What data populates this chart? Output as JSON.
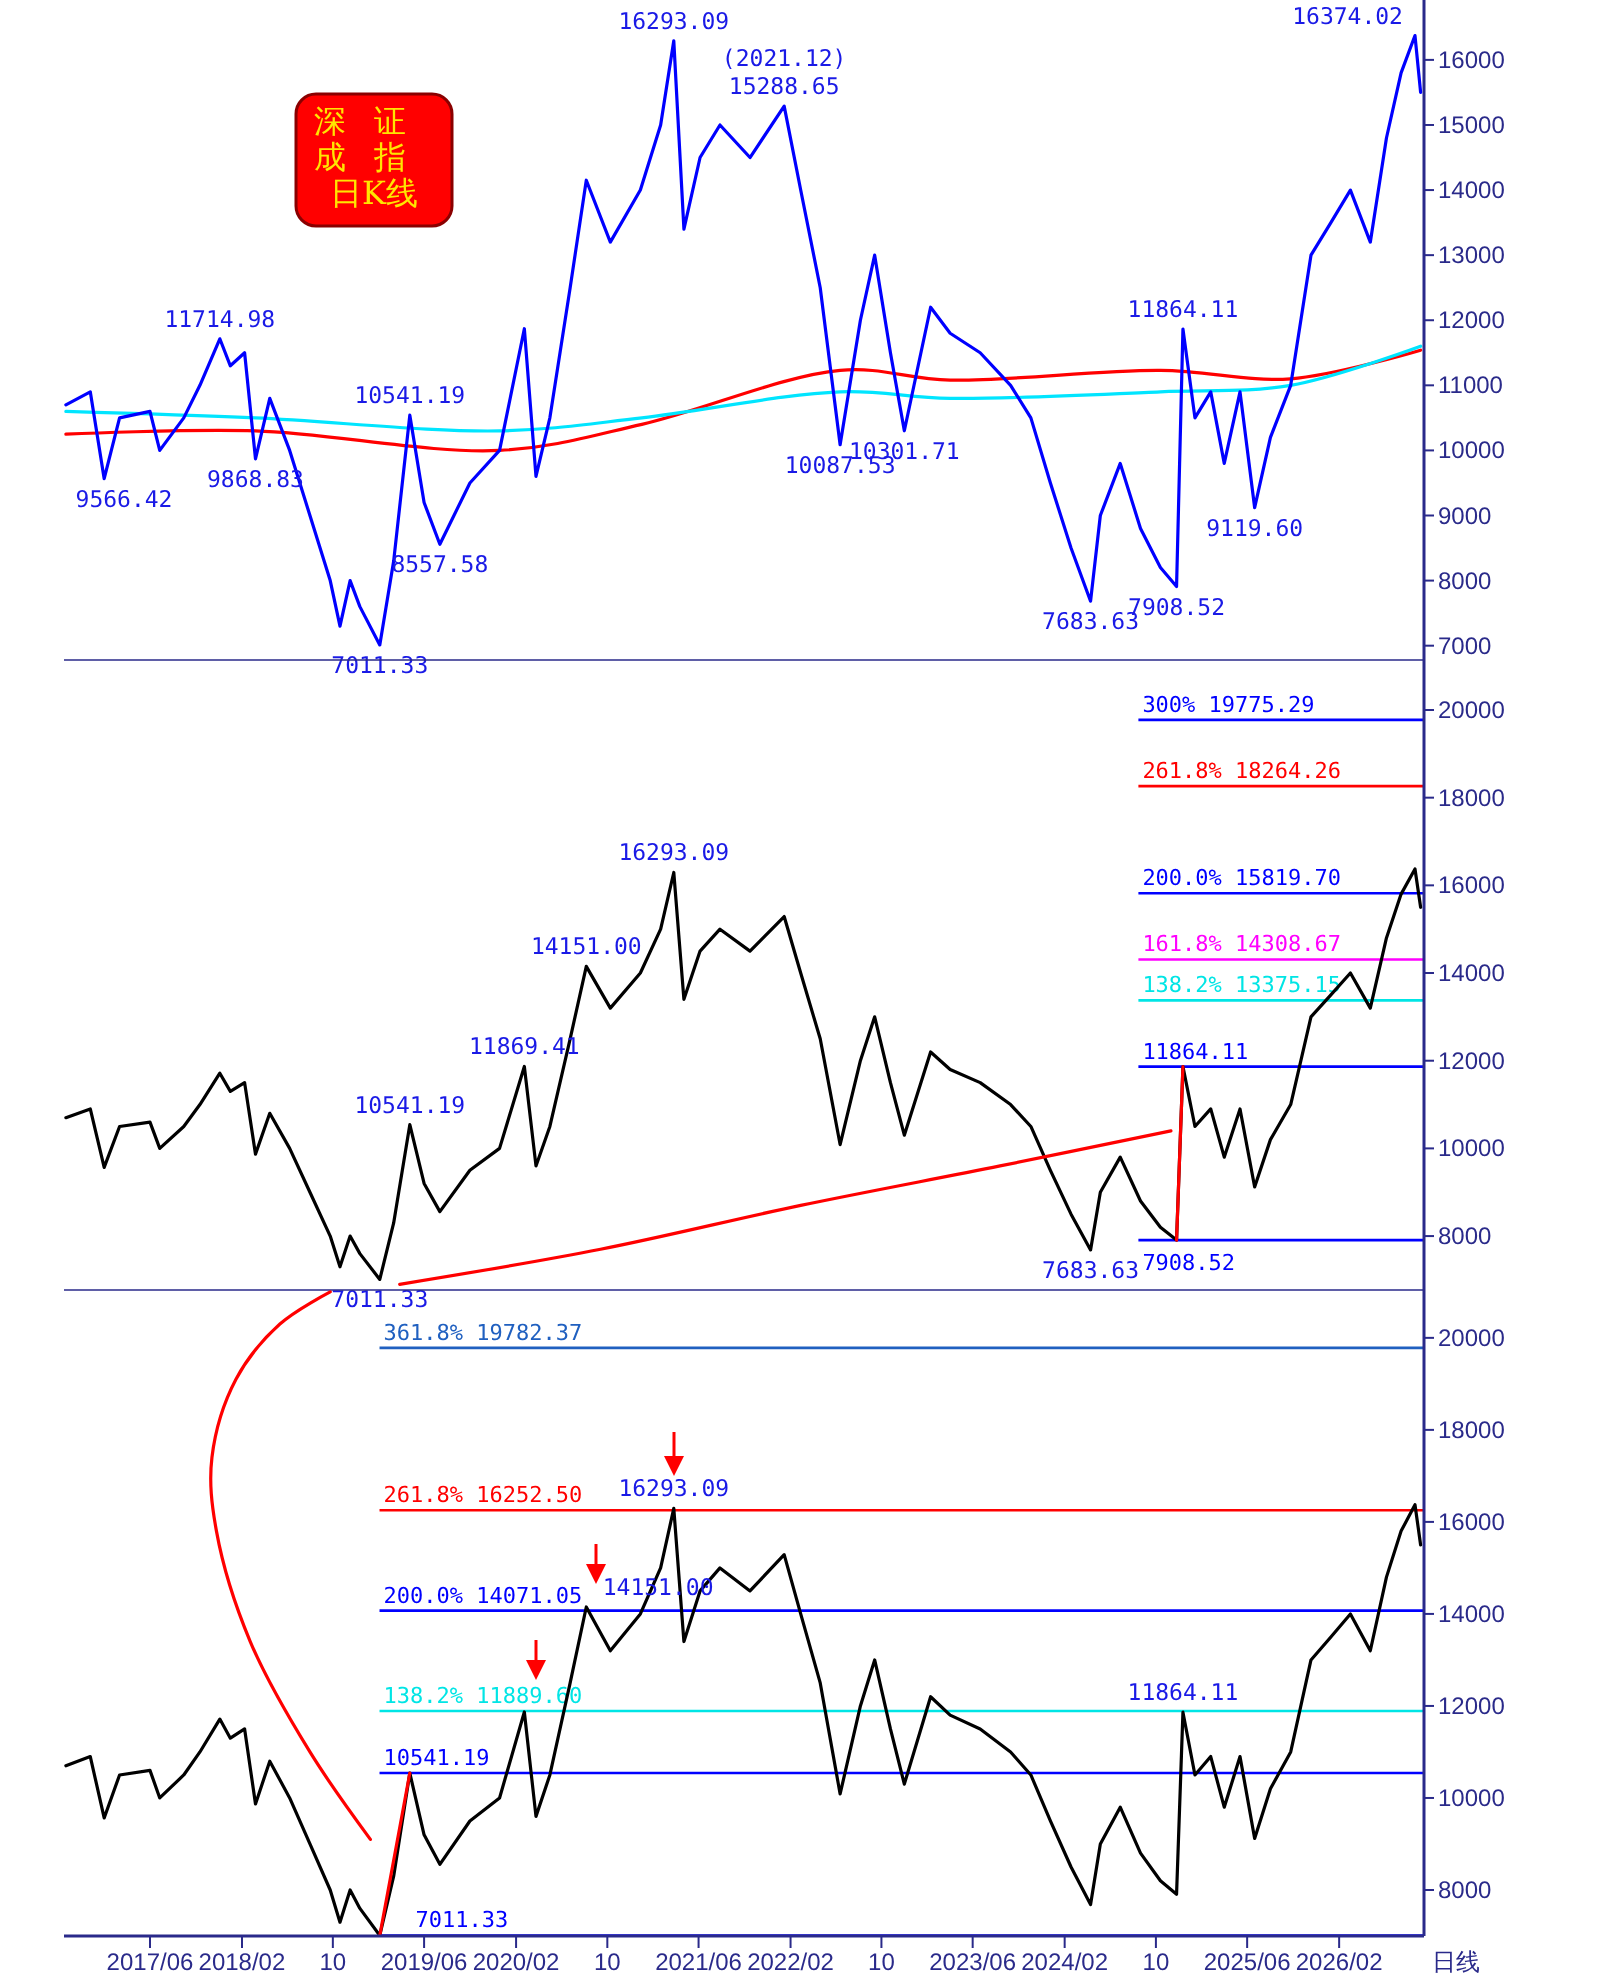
{
  "chart_data": [
    {
      "type": "line",
      "title": "深证成指日K线",
      "xlim": [
        "2016-10-15",
        "2026-09-15"
      ],
      "ylim": [
        6780,
        16920
      ],
      "yticks": [
        7000,
        8000,
        9000,
        10000,
        11000,
        12000,
        13000,
        14000,
        15000,
        16000
      ],
      "tick_labels": "y",
      "x": [
        "2016-10-20",
        "2016-12-24",
        "2017-01-30",
        "2017-03-12",
        "2017-06-01",
        "2017-06-27",
        "2017-08-30",
        "2017-10-12",
        "2017-12-04",
        "2018-01-01",
        "2018-02-08",
        "2018-03-09",
        "2018-04-16",
        "2018-06-08",
        "2018-08-01",
        "2018-09-24",
        "2018-10-20",
        "2018-11-16",
        "2018-12-12",
        "2019-02-03",
        "2019-03-12",
        "2019-04-24",
        "2019-06-01",
        "2019-07-13",
        "2019-10-01",
        "2019-12-19",
        "2020-02-23",
        "2020-03-25",
        "2020-05-01",
        "2020-06-24",
        "2020-08-06",
        "2020-10-09",
        "2020-12-28",
        "2021-02-20",
        "2021-03-27",
        "2021-04-23",
        "2021-06-05",
        "2021-07-28",
        "2021-10-16",
        "2022-01-15",
        "2022-02-28",
        "2022-04-21",
        "2022-06-13",
        "2022-08-06",
        "2022-09-13",
        "2022-10-25",
        "2022-12-01",
        "2023-02-09",
        "2023-04-02",
        "2023-06-21",
        "2023-09-10",
        "2023-11-03",
        "2023-12-25",
        "2024-02-18",
        "2024-04-10",
        "2024-05-06",
        "2024-06-28",
        "2024-08-21",
        "2024-10-13",
        "2024-11-25",
        "2024-12-12",
        "2025-01-13",
        "2025-02-24",
        "2025-04-01",
        "2025-05-13",
        "2025-06-21",
        "2025-08-02",
        "2025-09-25",
        "2025-11-18",
        "2026-01-10",
        "2026-03-03",
        "2026-04-25",
        "2026-06-07",
        "2026-07-16",
        "2026-08-22",
        "2026-09-06"
      ],
      "series": [
        {
          "color": "#ff0000",
          "x": [
            "2016-10-20",
            "2018-03-09",
            "2019-12-19",
            "2021-01-01",
            "2022-06-13",
            "2023-04-02",
            "2024-10-13",
            "2025-09-25",
            "2026-09-06"
          ],
          "values": [
            10250,
            10300,
            10000,
            10400,
            11230,
            11080,
            11230,
            11100,
            11540
          ]
        },
        {
          "color": "#00e5ff",
          "x": [
            "2016-10-20",
            "2018-03-09",
            "2019-12-19",
            "2021-01-01",
            "2022-06-13",
            "2023-04-02",
            "2024-10-13",
            "2025-09-25",
            "2026-09-06"
          ],
          "values": [
            10600,
            10500,
            10300,
            10500,
            10900,
            10800,
            10900,
            11000,
            11600
          ]
        },
        {
          "color": "#0000ff",
          "values": [
            10700,
            10900,
            9566.42,
            10500,
            10600,
            10000,
            10500,
            11000,
            11714.98,
            11300,
            11500,
            9868.83,
            10800,
            10000,
            9000,
            8000,
            7300,
            8000,
            7600,
            7011.33,
            8300,
            10541.19,
            9200,
            8557.58,
            9500,
            10000,
            11869.41,
            9600,
            10500,
            12500,
            14151,
            13200,
            14000,
            15000,
            16293.09,
            13400,
            14500,
            15000,
            14500,
            15288.65,
            14000,
            12500,
            10087.53,
            12000,
            13000,
            11500,
            10301.71,
            12200,
            11800,
            11500,
            11000,
            10500,
            9500,
            8500,
            7683.63,
            9000,
            9800,
            8800,
            8200,
            7908.52,
            11864.11,
            10500,
            10900,
            9800,
            10900,
            9119.6,
            10200,
            11000,
            13000,
            13500,
            14000,
            13200,
            14800,
            15800,
            16374.02,
            15500
          ]
        }
      ],
      "annotations": [
        {
          "text": "9566.42",
          "x": "2017-01-30",
          "y": 9566.42
        },
        {
          "text": "11714.98",
          "x": "2017-12-04",
          "y": 11714.98
        },
        {
          "text": "9868.83",
          "x": "2018-03-09",
          "y": 9868.83
        },
        {
          "text": "7011.33",
          "x": "2019-02-03",
          "y": 7011.33
        },
        {
          "text": "10541.19",
          "x": "2019-04-24",
          "y": 10541.19
        },
        {
          "text": "8557.58",
          "x": "2019-07-13",
          "y": 8557.58
        },
        {
          "text": "16293.09",
          "x": "2021-03-27",
          "y": 16293.09
        },
        {
          "text": "15288.65",
          "x": "2022-01-15",
          "y": 15288.65
        },
        {
          "text": "(2021.12)",
          "x": "2022-01-15",
          "y": 15288.65
        },
        {
          "text": "10087.53",
          "x": "2022-06-13",
          "y": 10087.53
        },
        {
          "text": "10301.71",
          "x": "2022-12-01",
          "y": 10301.71
        },
        {
          "text": "7683.63",
          "x": "2024-04-10",
          "y": 7683.63
        },
        {
          "text": "7908.52",
          "x": "2024-11-25",
          "y": 7908.52
        },
        {
          "text": "11864.11",
          "x": "2024-12-12",
          "y": 11864.11
        },
        {
          "text": "9119.60",
          "x": "2025-06-21",
          "y": 9119.6
        },
        {
          "text": "16374.02",
          "x": "2026-08-22",
          "y": 16374.02
        }
      ]
    },
    {
      "type": "line",
      "xlim": [
        "2016-10-15",
        "2026-09-15"
      ],
      "ylim": [
        6770,
        21140
      ],
      "yticks": [
        8000,
        10000,
        12000,
        14000,
        16000,
        18000,
        20000
      ],
      "tick_labels": "y",
      "x": [
        "2016-10-20",
        "2016-12-24",
        "2017-01-30",
        "2017-03-12",
        "2017-06-01",
        "2017-06-27",
        "2017-08-30",
        "2017-10-12",
        "2017-12-04",
        "2018-01-01",
        "2018-02-08",
        "2018-03-09",
        "2018-04-16",
        "2018-06-08",
        "2018-08-01",
        "2018-09-24",
        "2018-10-20",
        "2018-11-16",
        "2018-12-12",
        "2019-02-03",
        "2019-03-12",
        "2019-04-24",
        "2019-06-01",
        "2019-07-13",
        "2019-10-01",
        "2019-12-19",
        "2020-02-23",
        "2020-03-25",
        "2020-05-01",
        "2020-06-24",
        "2020-08-06",
        "2020-10-09",
        "2020-12-28",
        "2021-02-20",
        "2021-03-27",
        "2021-04-23",
        "2021-06-05",
        "2021-07-28",
        "2021-10-16",
        "2022-01-15",
        "2022-02-28",
        "2022-04-21",
        "2022-06-13",
        "2022-08-06",
        "2022-09-13",
        "2022-10-25",
        "2022-12-01",
        "2023-02-09",
        "2023-04-02",
        "2023-06-21",
        "2023-09-10",
        "2023-11-03",
        "2023-12-25",
        "2024-02-18",
        "2024-04-10",
        "2024-05-06",
        "2024-06-28",
        "2024-08-21",
        "2024-10-13",
        "2024-11-25",
        "2024-12-12",
        "2025-01-13",
        "2025-02-24",
        "2025-04-01",
        "2025-05-13",
        "2025-06-21",
        "2025-08-02",
        "2025-09-25",
        "2025-11-18",
        "2026-01-10",
        "2026-03-03",
        "2026-04-25",
        "2026-06-07",
        "2026-07-16",
        "2026-08-22",
        "2026-09-06"
      ],
      "series": [
        {
          "color": "#000000",
          "values": [
            10700,
            10900,
            9566.42,
            10500,
            10600,
            10000,
            10500,
            11000,
            11714.98,
            11300,
            11500,
            9868.83,
            10800,
            10000,
            9000,
            8000,
            7300,
            8000,
            7600,
            7011.33,
            8300,
            10541.19,
            9200,
            8557.58,
            9500,
            10000,
            11869.41,
            9600,
            10500,
            12500,
            14151,
            13200,
            14000,
            15000,
            16293.09,
            13400,
            14500,
            15000,
            14500,
            15288.65,
            14000,
            12500,
            10087.53,
            12000,
            13000,
            11500,
            10301.71,
            12200,
            11800,
            11500,
            11000,
            10500,
            9500,
            8500,
            7683.63,
            9000,
            9800,
            8800,
            8200,
            7908.52,
            11864.11,
            10500,
            10900,
            9800,
            10900,
            9119.6,
            10200,
            11000,
            13000,
            13500,
            14000,
            13200,
            14800,
            15800,
            16374.02,
            15500
          ]
        },
        {
          "color": "#ff0000",
          "x": [
            "2024-11-25",
            "2024-12-12"
          ],
          "values": [
            7908.52,
            11864.11
          ]
        },
        {
          "color": "#ff0000",
          "x": [
            "2024-11-10",
            "2023-08-13",
            "2022-02-28",
            "2020-09-13",
            "2019-03-28"
          ],
          "values": [
            10400,
            9600,
            8700,
            7700,
            6900
          ]
        }
      ],
      "ref_lines": [
        {
          "axis": "y",
          "value": 19775.29,
          "label": "300% 19775.29",
          "color": "#0000ff"
        },
        {
          "axis": "y",
          "value": 18264.26,
          "label": "261.8%  18264.26",
          "color": "#ff0000"
        },
        {
          "axis": "y",
          "value": 15819.7,
          "label": "200.0%  15819.70",
          "color": "#0000ff"
        },
        {
          "axis": "y",
          "value": 14308.67,
          "label": "161.8%  14308.67",
          "color": "#ff00ff"
        },
        {
          "axis": "y",
          "value": 13375.15,
          "label": "138.2%  13375.15",
          "color": "#00e5e5"
        },
        {
          "axis": "y",
          "value": 11864.11,
          "label": "11864.11",
          "color": "#0000ff"
        },
        {
          "axis": "y",
          "value": 7908.52,
          "label": "7908.52",
          "color": "#0000ff"
        }
      ],
      "annotations": [
        {
          "text": "10541.19",
          "x": "2019-04-24",
          "y": 10541.19
        },
        {
          "text": "7011.33",
          "x": "2019-02-03",
          "y": 7011.33
        },
        {
          "text": "11869.41",
          "x": "2020-02-23",
          "y": 11869.41
        },
        {
          "text": "14151.00",
          "x": "2020-08-06",
          "y": 14151
        },
        {
          "text": "16293.09",
          "x": "2021-03-27",
          "y": 16293.09
        },
        {
          "text": "7683.63",
          "x": "2024-04-10",
          "y": 7683.63
        }
      ]
    },
    {
      "type": "line",
      "xlim": [
        "2016-10-15",
        "2026-09-15"
      ],
      "ylim": [
        7000,
        21040
      ],
      "yticks": [
        8000,
        10000,
        12000,
        14000,
        16000,
        18000,
        20000
      ],
      "xticks": [
        {
          "value": "2017-06-01",
          "label": "2017/06"
        },
        {
          "value": "2018-02-01",
          "label": "2018/02"
        },
        {
          "value": "2018-10-01",
          "label": "10"
        },
        {
          "value": "2019-06-01",
          "label": "2019/06"
        },
        {
          "value": "2020-02-01",
          "label": "2020/02"
        },
        {
          "value": "2020-10-01",
          "label": "10"
        },
        {
          "value": "2021-06-01",
          "label": "2021/06"
        },
        {
          "value": "2022-02-01",
          "label": "2022/02"
        },
        {
          "value": "2022-10-01",
          "label": "10"
        },
        {
          "value": "2023-06-01",
          "label": "2023/06"
        },
        {
          "value": "2024-02-01",
          "label": "2024/02"
        },
        {
          "value": "2024-10-01",
          "label": "10"
        },
        {
          "value": "2025-06-01",
          "label": "2025/06"
        },
        {
          "value": "2026-02-01",
          "label": "2026/02"
        }
      ],
      "xlabel": "日线",
      "x": [
        "2016-10-20",
        "2016-12-24",
        "2017-01-30",
        "2017-03-12",
        "2017-06-01",
        "2017-06-27",
        "2017-08-30",
        "2017-10-12",
        "2017-12-04",
        "2018-01-01",
        "2018-02-08",
        "2018-03-09",
        "2018-04-16",
        "2018-06-08",
        "2018-08-01",
        "2018-09-24",
        "2018-10-20",
        "2018-11-16",
        "2018-12-12",
        "2019-02-03",
        "2019-03-12",
        "2019-04-24",
        "2019-06-01",
        "2019-07-13",
        "2019-10-01",
        "2019-12-19",
        "2020-02-23",
        "2020-03-25",
        "2020-05-01",
        "2020-06-24",
        "2020-08-06",
        "2020-10-09",
        "2020-12-28",
        "2021-02-20",
        "2021-03-27",
        "2021-04-23",
        "2021-06-05",
        "2021-07-28",
        "2021-10-16",
        "2022-01-15",
        "2022-02-28",
        "2022-04-21",
        "2022-06-13",
        "2022-08-06",
        "2022-09-13",
        "2022-10-25",
        "2022-12-01",
        "2023-02-09",
        "2023-04-02",
        "2023-06-21",
        "2023-09-10",
        "2023-11-03",
        "2023-12-25",
        "2024-02-18",
        "2024-04-10",
        "2024-05-06",
        "2024-06-28",
        "2024-08-21",
        "2024-10-13",
        "2024-11-25",
        "2024-12-12",
        "2025-01-13",
        "2025-02-24",
        "2025-04-01",
        "2025-05-13",
        "2025-06-21",
        "2025-08-02",
        "2025-09-25",
        "2025-11-18",
        "2026-01-10",
        "2026-03-03",
        "2026-04-25",
        "2026-06-07",
        "2026-07-16",
        "2026-08-22",
        "2026-09-06"
      ],
      "series": [
        {
          "color": "#000000",
          "values": [
            10700,
            10900,
            9566.42,
            10500,
            10600,
            10000,
            10500,
            11000,
            11714.98,
            11300,
            11500,
            9868.83,
            10800,
            10000,
            9000,
            8000,
            7300,
            8000,
            7600,
            7011.33,
            8300,
            10541.19,
            9200,
            8557.58,
            9500,
            10000,
            11869.41,
            9600,
            10500,
            12500,
            14151,
            13200,
            14000,
            15000,
            16293.09,
            13400,
            14500,
            15000,
            14500,
            15288.65,
            14000,
            12500,
            10087.53,
            12000,
            13000,
            11500,
            10301.71,
            12200,
            11800,
            11500,
            11000,
            10500,
            9500,
            8500,
            7683.63,
            9000,
            9800,
            8800,
            8200,
            7908.52,
            11864.11,
            10500,
            10900,
            9800,
            10900,
            9119.6,
            10200,
            11000,
            13000,
            13500,
            14000,
            13200,
            14800,
            15800,
            16374.02,
            15500
          ]
        },
        {
          "color": "#ff0000",
          "x": [
            "2019-02-03",
            "2019-04-24"
          ],
          "values": [
            7011.33,
            10541.19
          ]
        },
        {
          "color": "#ff0000",
          "x": [
            "2018-09-24",
            "2018-05-13",
            "2018-01-16",
            "2017-11-13",
            "2017-11-25",
            "2018-02-23",
            "2018-08-01",
            "2019-01-09"
          ],
          "values": [
            21000,
            20300,
            19100,
            17400,
            15800,
            13400,
            11000,
            9100
          ]
        }
      ],
      "ref_lines": [
        {
          "axis": "y",
          "value": 19782.37,
          "label": "361.8%  19782.37",
          "color": "#2060c0"
        },
        {
          "axis": "y",
          "value": 16252.5,
          "label": "261.8%  16252.50",
          "color": "#ff0000"
        },
        {
          "axis": "y",
          "value": 14071.05,
          "label": "200.0%  14071.05",
          "color": "#0000ff"
        },
        {
          "axis": "y",
          "value": 11889.6,
          "label": "138.2%  11889.60",
          "color": "#00e5e5"
        },
        {
          "axis": "y",
          "value": 10541.19,
          "label": "10541.19",
          "color": "#0000ff"
        },
        {
          "axis": "y",
          "value": 7011.33,
          "label": "7011.33",
          "color": "#0000ff"
        }
      ],
      "annotations": [
        {
          "text": "16293.09",
          "x": "2021-03-27",
          "y": 16293.09
        },
        {
          "text": "14151.00",
          "x": "2020-08-06",
          "y": 14151
        },
        {
          "text": "11864.11",
          "x": "2024-12-12",
          "y": 11864.11
        }
      ]
    }
  ]
}
